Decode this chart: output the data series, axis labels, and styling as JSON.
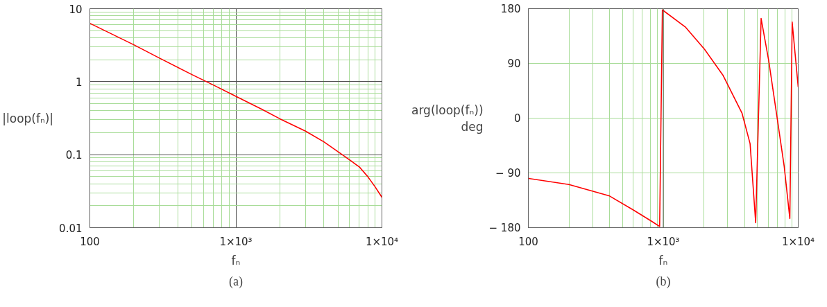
{
  "chart_data": [
    {
      "type": "line",
      "xlabel": "fₙ",
      "ylabel": "|loop(fₙ)|",
      "annotations": [
        "(a)"
      ],
      "log": "xy",
      "grid": true,
      "line_style": "solid",
      "marker": "none",
      "x": [
        100,
        200,
        300,
        500,
        700,
        1000,
        1500,
        2000,
        3000,
        4000,
        5000,
        6000,
        7000,
        8000,
        9000,
        10000
      ],
      "series": [
        {
          "color": "#ff0000",
          "values": [
            6.3,
            3.2,
            2.1,
            1.25,
            0.9,
            0.63,
            0.42,
            0.31,
            0.21,
            0.15,
            0.11,
            0.085,
            0.068,
            0.05,
            0.036,
            0.026
          ]
        }
      ],
      "xlim": [
        100,
        10000
      ],
      "ylim": [
        0.01,
        10
      ],
      "xticks": [
        100,
        {
          "value": 200,
          "label": null
        },
        {
          "value": 300,
          "label": null
        },
        {
          "value": 400,
          "label": null
        },
        {
          "value": 500,
          "label": null
        },
        {
          "value": 600,
          "label": null
        },
        {
          "value": 700,
          "label": null
        },
        {
          "value": 800,
          "label": null
        },
        {
          "value": 900,
          "label": null
        },
        {
          "value": 1000,
          "label": "1×10³"
        },
        {
          "value": 2000,
          "label": null
        },
        {
          "value": 3000,
          "label": null
        },
        {
          "value": 4000,
          "label": null
        },
        {
          "value": 5000,
          "label": null
        },
        {
          "value": 6000,
          "label": null
        },
        {
          "value": 7000,
          "label": null
        },
        {
          "value": 8000,
          "label": null
        },
        {
          "value": 9000,
          "label": null
        },
        {
          "value": 10000,
          "label": "1×10⁴"
        }
      ],
      "yticks": [
        0.01,
        {
          "value": 0.02,
          "label": null
        },
        {
          "value": 0.03,
          "label": null
        },
        {
          "value": 0.04,
          "label": null
        },
        {
          "value": 0.05,
          "label": null
        },
        {
          "value": 0.06,
          "label": null
        },
        {
          "value": 0.07,
          "label": null
        },
        {
          "value": 0.08,
          "label": null
        },
        {
          "value": 0.09,
          "label": null
        },
        0.1,
        {
          "value": 0.2,
          "label": null
        },
        {
          "value": 0.3,
          "label": null
        },
        {
          "value": 0.4,
          "label": null
        },
        {
          "value": 0.5,
          "label": null
        },
        {
          "value": 0.6,
          "label": null
        },
        {
          "value": 0.7,
          "label": null
        },
        {
          "value": 0.8,
          "label": null
        },
        {
          "value": 0.9,
          "label": null
        },
        1,
        {
          "value": 2,
          "label": null
        },
        {
          "value": 3,
          "label": null
        },
        {
          "value": 4,
          "label": null
        },
        {
          "value": 5,
          "label": null
        },
        {
          "value": 6,
          "label": null
        },
        {
          "value": 7,
          "label": null
        },
        {
          "value": 8,
          "label": null
        },
        {
          "value": 9,
          "label": null
        },
        10
      ]
    },
    {
      "type": "line",
      "xlabel": "fₙ",
      "ylabel": "arg(loop(fₙ))\ndeg",
      "annotations": [
        "(b)"
      ],
      "log": "x",
      "grid": true,
      "line_style": "solid",
      "marker": "none",
      "x": [
        100,
        200,
        400,
        600,
        800,
        940,
        985,
        1455,
        2010,
        2780,
        3835,
        4400,
        4840,
        5310,
        6040,
        6900,
        7880,
        8670,
        9020,
        10000
      ],
      "series": [
        {
          "color": "#ff0000",
          "values": [
            -99,
            -109,
            -128,
            -151,
            -168,
            -178,
            178,
            150,
            114,
            70,
            8,
            -42,
            -172,
            164,
            95,
            8,
            -80,
            -165,
            158,
            51
          ]
        }
      ],
      "xlim": [
        100,
        10000
      ],
      "ylim": [
        -180,
        180
      ],
      "ref_lines": [
        {
          "axis": "x",
          "value": 1000,
          "color": "#505050"
        }
      ],
      "xticks": [
        100,
        {
          "value": 200,
          "label": null
        },
        {
          "value": 300,
          "label": null
        },
        {
          "value": 400,
          "label": null
        },
        {
          "value": 500,
          "label": null
        },
        {
          "value": 600,
          "label": null
        },
        {
          "value": 700,
          "label": null
        },
        {
          "value": 800,
          "label": null
        },
        {
          "value": 900,
          "label": null
        },
        {
          "value": 1000,
          "label": "1×10³"
        },
        {
          "value": 2000,
          "label": null
        },
        {
          "value": 3000,
          "label": null
        },
        {
          "value": 4000,
          "label": null
        },
        {
          "value": 5000,
          "label": null
        },
        {
          "value": 6000,
          "label": null
        },
        {
          "value": 7000,
          "label": null
        },
        {
          "value": 8000,
          "label": null
        },
        {
          "value": 9000,
          "label": null
        },
        {
          "value": 10000,
          "label": "1×10⁴"
        }
      ],
      "yticks": [
        {
          "value": -180,
          "label": "− 180"
        },
        {
          "value": -90,
          "label": "− 90"
        },
        0,
        90,
        180
      ]
    }
  ]
}
